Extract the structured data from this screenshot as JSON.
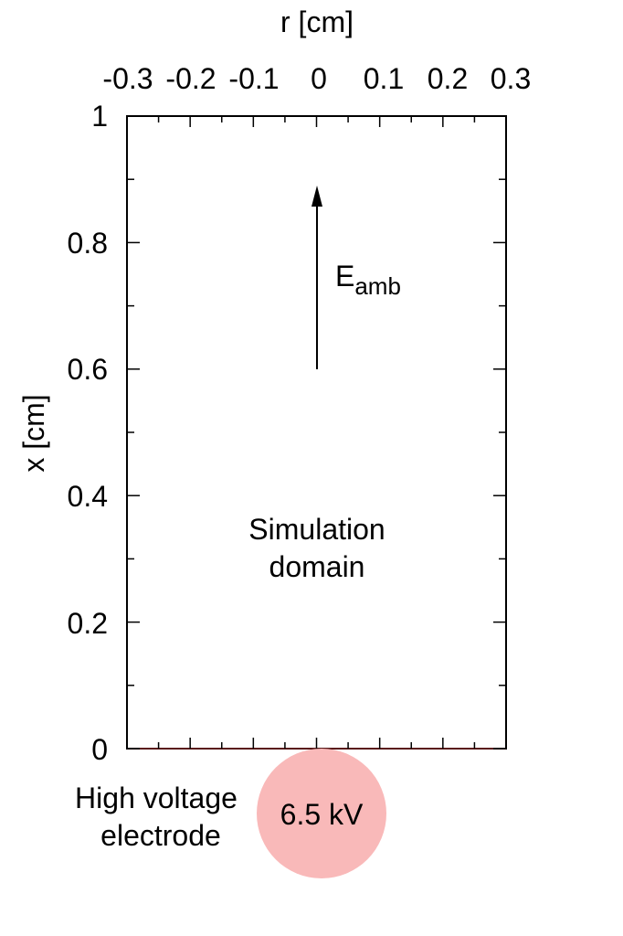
{
  "axes": {
    "top_title": "r [cm]",
    "left_title": "x [cm]",
    "r_ticks": [
      "-0.3",
      "-0.2",
      "-0.1",
      "0",
      "0.1",
      "0.2",
      "0.3"
    ],
    "x_ticks": [
      "0",
      "0.2",
      "0.4",
      "0.6",
      "0.8",
      "1"
    ]
  },
  "annotations": {
    "field_label_main": "E",
    "field_label_sub": "amb",
    "domain_line1": "Simulation",
    "domain_line2": "domain",
    "electrode_line1": "High voltage",
    "electrode_line2": "electrode",
    "electrode_voltage": "6.5 kV"
  },
  "colors": {
    "electrode_fill": "#f9b9b9",
    "frame": "#000000",
    "bottom_edge": "#5a1a1a"
  }
}
